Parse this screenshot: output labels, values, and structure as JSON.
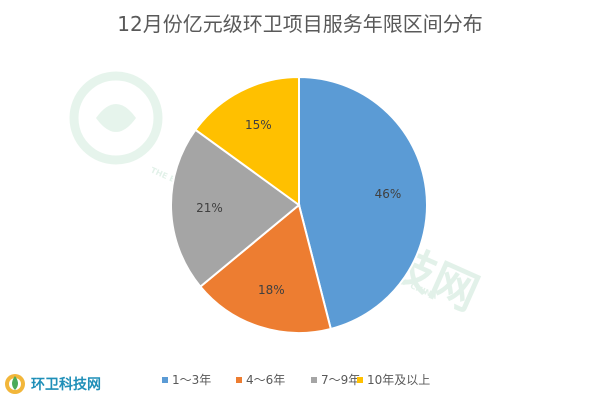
{
  "chart_data": {
    "type": "pie",
    "title": "12月份亿元级环卫项目服务年限区间分布",
    "categories": [
      "1～3年",
      "4～6年",
      "7～9年",
      "10年及以上"
    ],
    "values": [
      46,
      18,
      21,
      15
    ],
    "labels": [
      "46%",
      "18%",
      "21%",
      "15%"
    ],
    "colors": [
      "#5B9BD5",
      "#ED7D31",
      "#A5A5A5",
      "#FFC000"
    ],
    "legend": "bottom",
    "unit": "%"
  },
  "watermark": {
    "text": "中国环卫科技网",
    "subtext": "THE ENVIRONMENTAL SANITATION TECHNOLOGY NETWORK OF CHINA"
  },
  "brand": {
    "name": "环卫科技网",
    "logo_icon": "leaf-drop-logo-icon",
    "color": "#1f8fb8"
  }
}
